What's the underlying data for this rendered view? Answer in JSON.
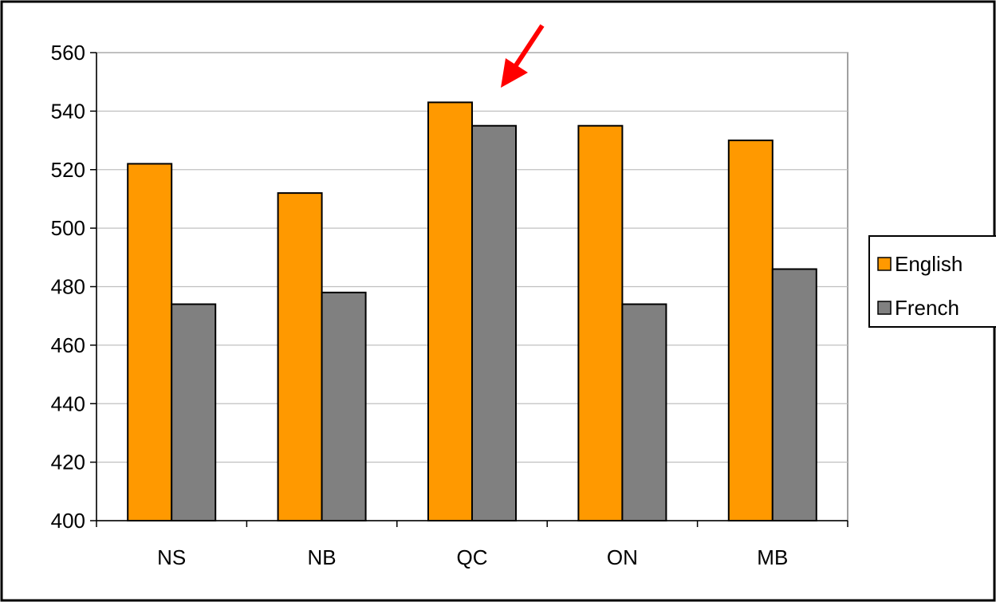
{
  "chart_data": {
    "type": "bar",
    "title": "",
    "xlabel": "",
    "ylabel": "",
    "categories": [
      "NS",
      "NB",
      "QC",
      "ON",
      "MB"
    ],
    "series": [
      {
        "name": "English",
        "values": [
          522,
          512,
          543,
          535,
          530
        ],
        "color": "#FF9900"
      },
      {
        "name": "French",
        "values": [
          474,
          478,
          535,
          474,
          486
        ],
        "color": "#808080"
      }
    ],
    "ylim": [
      400,
      560
    ],
    "yticks": [
      "400",
      "420",
      "440",
      "460",
      "480",
      "500",
      "520",
      "540",
      "560"
    ],
    "grid": true,
    "legend_position": "right",
    "annotation": {
      "type": "arrow",
      "color": "#FF0000",
      "points_to": "QC"
    }
  }
}
